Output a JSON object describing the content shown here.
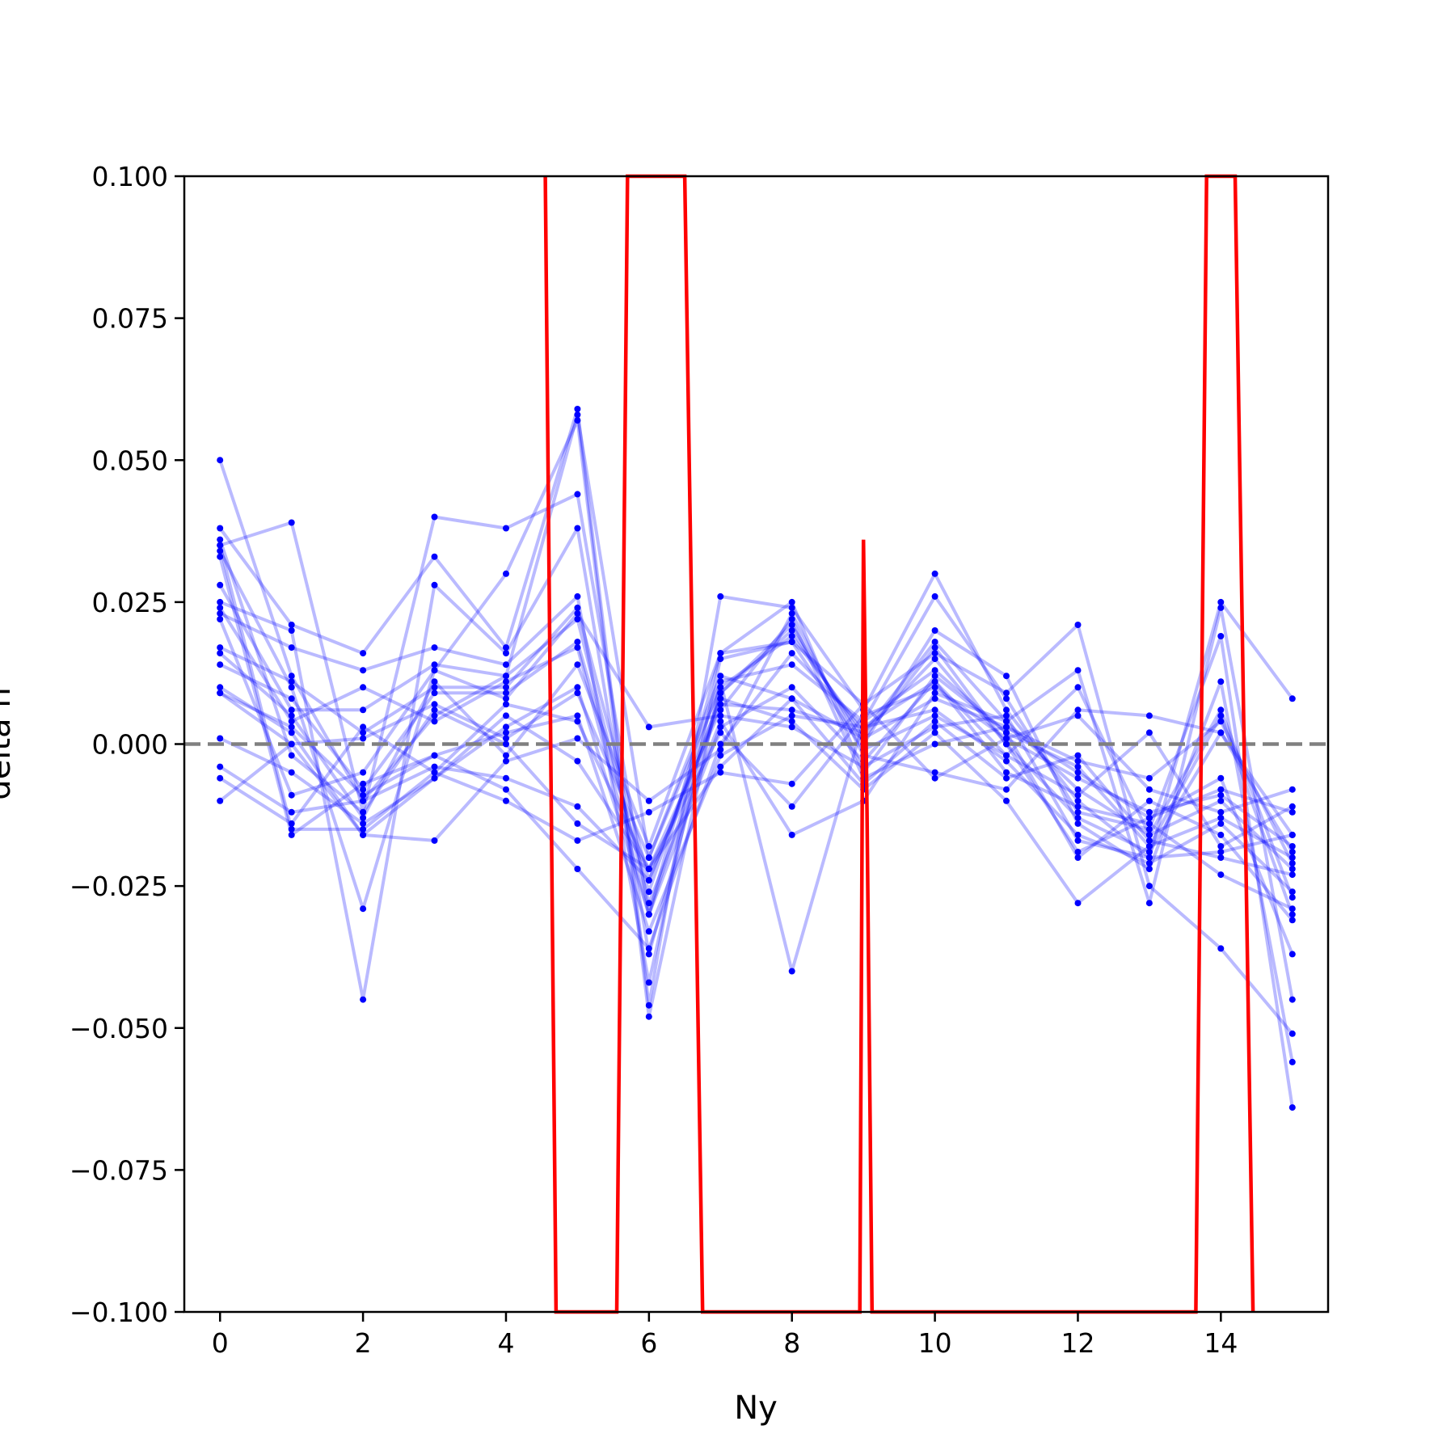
{
  "chart_data": {
    "type": "line",
    "title": "",
    "xlabel": "Ny",
    "ylabel": "delta n",
    "xlim": [
      -0.5,
      15.5
    ],
    "ylim": [
      -0.1,
      0.1
    ],
    "x_ticks": [
      0,
      2,
      4,
      6,
      8,
      10,
      12,
      14
    ],
    "x_tick_labels": [
      "0",
      "2",
      "4",
      "6",
      "8",
      "10",
      "12",
      "14"
    ],
    "y_ticks": [
      -0.1,
      -0.075,
      -0.05,
      -0.025,
      0.0,
      0.025,
      0.05,
      0.075,
      0.1
    ],
    "y_tick_labels": [
      "−0.100",
      "−0.075",
      "−0.050",
      "−0.025",
      "0.000",
      "0.025",
      "0.050",
      "0.075",
      "0.100"
    ],
    "grid": false,
    "reference_line": {
      "y": 0.0,
      "style": "dashed",
      "color": "#808080"
    },
    "colors": {
      "series": "#0000ff",
      "mean": "#ff0000"
    },
    "x": [
      0,
      1,
      2,
      3,
      4,
      5,
      6,
      7,
      8,
      9,
      10,
      11,
      12,
      13,
      14,
      15
    ],
    "series": [
      {
        "values": [
          0.05,
          0.012,
          -0.01,
          0.005,
          0.012,
          0.058,
          -0.02,
          0.01,
          0.019,
          0.002,
          0.018,
          0.004,
          -0.008,
          -0.016,
          -0.01,
          -0.022
        ]
      },
      {
        "values": [
          0.035,
          0.039,
          -0.012,
          0.04,
          0.038,
          0.044,
          -0.03,
          0.016,
          0.025,
          -0.005,
          0.012,
          0.002,
          -0.004,
          -0.018,
          0.005,
          -0.03
        ]
      },
      {
        "values": [
          0.038,
          0.021,
          0.016,
          0.033,
          0.017,
          0.059,
          -0.046,
          0.026,
          0.024,
          0.006,
          0.03,
          0.006,
          -0.01,
          -0.02,
          0.025,
          0.008
        ]
      },
      {
        "values": [
          0.034,
          0.01,
          -0.029,
          0.013,
          0.03,
          0.057,
          -0.048,
          0.011,
          -0.04,
          0.004,
          0.026,
          0.008,
          -0.012,
          -0.015,
          0.019,
          -0.064
        ]
      },
      {
        "values": [
          0.025,
          0.02,
          -0.045,
          0.028,
          0.016,
          0.038,
          -0.037,
          0.009,
          0.021,
          0.0,
          0.02,
          0.012,
          -0.014,
          -0.022,
          0.011,
          -0.056
        ]
      },
      {
        "values": [
          0.023,
          0.017,
          0.013,
          0.017,
          0.014,
          0.026,
          -0.042,
          0.015,
          0.018,
          0.007,
          0.016,
          0.009,
          0.021,
          -0.025,
          -0.036,
          -0.051
        ]
      },
      {
        "values": [
          0.028,
          0.006,
          0.006,
          0.014,
          0.012,
          0.022,
          -0.028,
          0.004,
          -0.016,
          -0.01,
          0.009,
          0.004,
          0.013,
          -0.028,
          0.024,
          -0.045
        ]
      },
      {
        "values": [
          0.017,
          0.011,
          0.002,
          0.01,
          0.01,
          0.024,
          -0.024,
          0.007,
          0.006,
          0.002,
          0.015,
          0.0,
          -0.019,
          -0.013,
          -0.006,
          -0.037
        ]
      },
      {
        "values": [
          0.014,
          0.008,
          -0.008,
          0.009,
          0.009,
          0.018,
          -0.026,
          0.011,
          0.014,
          0.004,
          0.013,
          0.002,
          -0.02,
          -0.01,
          -0.016,
          -0.031
        ]
      },
      {
        "values": [
          0.01,
          0.002,
          -0.016,
          -0.006,
          0.003,
          0.01,
          -0.03,
          0.003,
          0.01,
          -0.003,
          0.011,
          -0.005,
          -0.011,
          -0.014,
          -0.023,
          -0.029
        ]
      },
      {
        "values": [
          0.009,
          0.003,
          -0.009,
          -0.002,
          0.002,
          0.005,
          -0.033,
          -0.002,
          0.005,
          0.003,
          0.006,
          -0.003,
          -0.016,
          -0.021,
          -0.014,
          -0.026
        ]
      },
      {
        "values": [
          0.001,
          -0.005,
          -0.014,
          -0.006,
          0.005,
          -0.003,
          -0.022,
          -0.004,
          0.008,
          -0.007,
          0.004,
          -0.006,
          -0.002,
          -0.017,
          -0.02,
          -0.023
        ]
      },
      {
        "values": [
          -0.004,
          -0.012,
          -0.01,
          -0.004,
          -0.006,
          -0.011,
          -0.024,
          0.008,
          0.004,
          -0.008,
          0.002,
          -0.01,
          -0.028,
          -0.018,
          -0.013,
          -0.02
        ]
      },
      {
        "values": [
          -0.006,
          -0.014,
          0.003,
          -0.005,
          -0.01,
          -0.017,
          -0.012,
          -0.005,
          -0.007,
          0.007,
          -0.006,
          0.001,
          -0.006,
          -0.012,
          -0.009,
          -0.018
        ]
      },
      {
        "values": [
          -0.01,
          0.0,
          -0.016,
          -0.017,
          -0.003,
          0.001,
          -0.01,
          -0.001,
          0.023,
          -0.002,
          -0.005,
          -0.008,
          0.006,
          0.005,
          0.002,
          -0.016
        ]
      },
      {
        "values": [
          0.036,
          -0.002,
          -0.012,
          0.006,
          0.0,
          -0.014,
          -0.022,
          0.006,
          0.022,
          -0.006,
          0.0,
          0.003,
          -0.003,
          -0.006,
          0.004,
          -0.021
        ]
      },
      {
        "values": [
          0.033,
          -0.016,
          -0.007,
          -0.002,
          -0.008,
          -0.022,
          -0.036,
          0.0,
          0.016,
          0.003,
          0.011,
          -0.002,
          0.01,
          -0.016,
          0.006,
          -0.027
        ]
      },
      {
        "values": [
          0.024,
          0.004,
          0.01,
          0.004,
          0.011,
          0.017,
          -0.03,
          0.009,
          0.02,
          0.001,
          0.017,
          0.0,
          -0.013,
          -0.019,
          0.002,
          -0.019
        ]
      },
      {
        "values": [
          0.022,
          -0.009,
          -0.005,
          0.013,
          0.008,
          0.023,
          0.003,
          0.005,
          0.003,
          -0.004,
          0.003,
          0.005,
          -0.017,
          -0.02,
          -0.019,
          -0.016
        ]
      },
      {
        "values": [
          0.009,
          0.0,
          0.001,
          0.007,
          0.001,
          0.009,
          -0.02,
          0.012,
          0.008,
          0.001,
          0.008,
          0.003,
          -0.005,
          -0.013,
          -0.008,
          -0.012
        ]
      },
      {
        "values": [
          0.016,
          0.005,
          -0.013,
          0.011,
          -0.002,
          0.014,
          -0.018,
          0.016,
          0.018,
          -0.001,
          0.005,
          -0.002,
          -0.009,
          0.002,
          -0.018,
          -0.011
        ]
      },
      {
        "values": [
          0.035,
          -0.015,
          -0.015,
          -0.005,
          0.007,
          0.004,
          -0.022,
          0.002,
          -0.011,
          0.005,
          0.01,
          0.001,
          0.005,
          -0.008,
          -0.012,
          -0.008
        ]
      }
    ],
    "mean_line": {
      "x": [
        4.55,
        4.7,
        5.55,
        5.7,
        6.5,
        6.75,
        8.95,
        9.0,
        9.05,
        9.12,
        13.65,
        13.8,
        14.2,
        14.45
      ],
      "y": [
        0.1,
        -0.1,
        -0.1,
        0.1,
        0.1,
        -0.1,
        -0.1,
        0.036,
        -0.012,
        -0.1,
        -0.1,
        0.1,
        0.1,
        -0.1
      ]
    }
  }
}
